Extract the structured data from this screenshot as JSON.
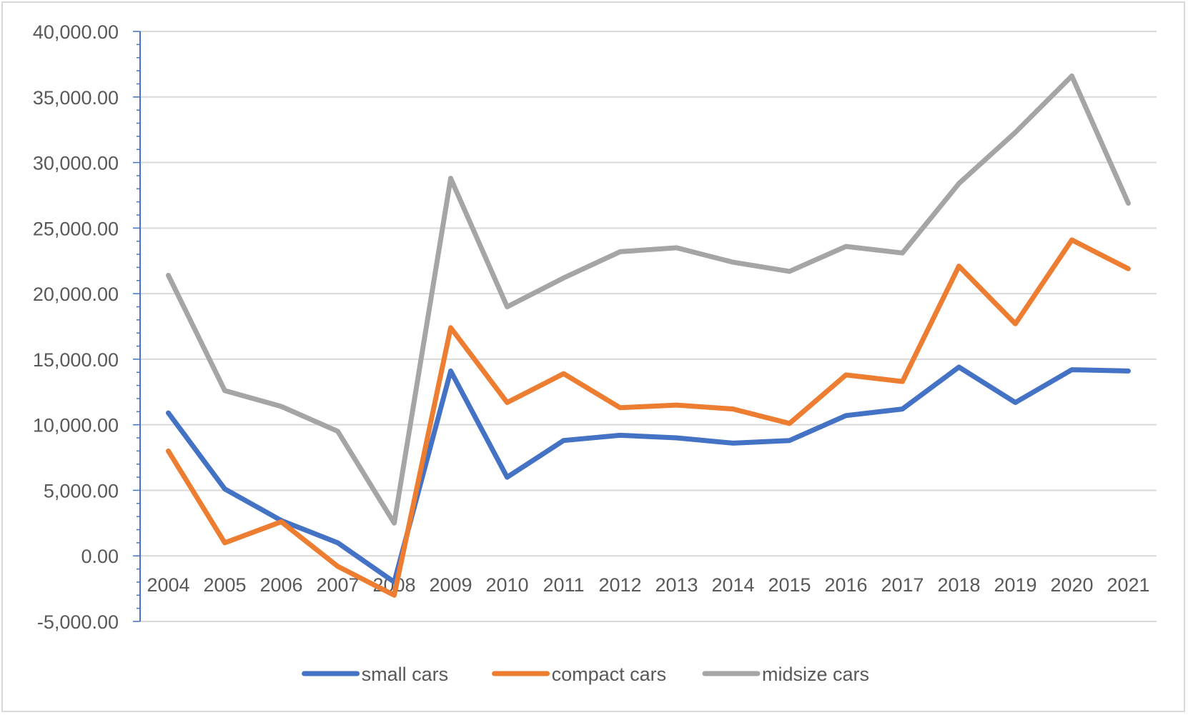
{
  "chart_data": {
    "type": "line",
    "title": "",
    "xlabel": "",
    "ylabel": "",
    "categories": [
      "2004",
      "2005",
      "2006",
      "2007",
      "2008",
      "2009",
      "2010",
      "2011",
      "2012",
      "2013",
      "2014",
      "2015",
      "2016",
      "2017",
      "2018",
      "2019",
      "2020",
      "2021"
    ],
    "ylim": [
      -5000,
      40000
    ],
    "yticks": [
      40000,
      35000,
      30000,
      25000,
      20000,
      15000,
      10000,
      5000,
      0,
      -5000
    ],
    "ytick_labels": [
      "40,000.00",
      "35,000.00",
      "30,000.00",
      "25,000.00",
      "20,000.00",
      "15,000.00",
      "10,000.00",
      "5,000.00",
      "0.00",
      "-5,000.00"
    ],
    "grid": true,
    "legend_position": "bottom",
    "series": [
      {
        "name": "small cars",
        "color": "#4472c4",
        "values": [
          10900,
          5100,
          2700,
          1000,
          -2000,
          14100,
          6000,
          8800,
          9200,
          9000,
          8600,
          8800,
          10700,
          11200,
          14400,
          11700,
          14200,
          14100
        ]
      },
      {
        "name": "compact cars",
        "color": "#ed7d31",
        "values": [
          8000,
          1000,
          2600,
          -800,
          -3000,
          17400,
          11700,
          13900,
          11300,
          11500,
          11200,
          10100,
          13800,
          13300,
          22100,
          17700,
          24100,
          21900
        ]
      },
      {
        "name": "midsize cars",
        "color": "#a5a5a5",
        "values": [
          21400,
          12600,
          11400,
          9500,
          2500,
          28800,
          19000,
          21200,
          23200,
          23500,
          22400,
          21700,
          23600,
          23100,
          28400,
          32300,
          36600,
          26900
        ]
      }
    ]
  }
}
